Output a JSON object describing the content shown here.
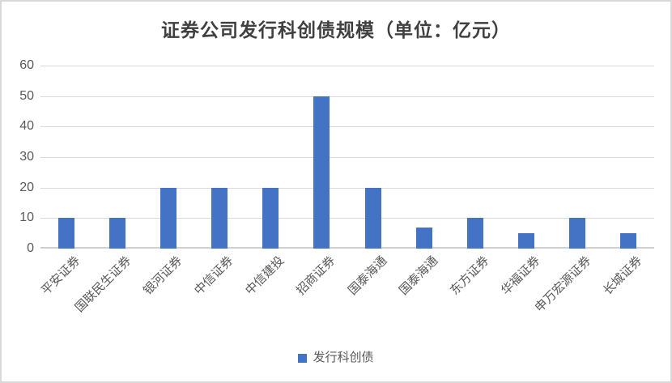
{
  "title": "证券公司发行科创债规模（单位：亿元）",
  "legend": {
    "label": "发行科创债",
    "marker_color": "#4472C4"
  },
  "colors": {
    "bar": "#4472C4",
    "gridline": "#D9D9D9",
    "axis_line": "#CFCFCF",
    "tick_text": "#595959",
    "category_text": "#595959",
    "title_text": "#404040",
    "frame_border": "#D9D9D9"
  },
  "chart_data": {
    "type": "bar",
    "title": "证券公司发行科创债规模（单位：亿元）",
    "series_name": "发行科创债",
    "categories": [
      "平安证券",
      "国联民生证券",
      "银河证券",
      "中信证券",
      "中信建投",
      "招商证券",
      "国泰海通",
      "国泰海通",
      "东方证券",
      "华福证券",
      "申万宏源证券",
      "长城证券"
    ],
    "values": [
      10,
      10,
      20,
      20,
      20,
      50,
      20,
      7,
      10,
      5,
      10,
      5
    ],
    "xlabel": "",
    "ylabel": "",
    "ylim": [
      0,
      60
    ],
    "y_ticks": [
      0,
      10,
      20,
      30,
      40,
      50,
      60
    ],
    "grid": true,
    "x_label_rotation_deg": 45,
    "legend_position": "bottom"
  }
}
